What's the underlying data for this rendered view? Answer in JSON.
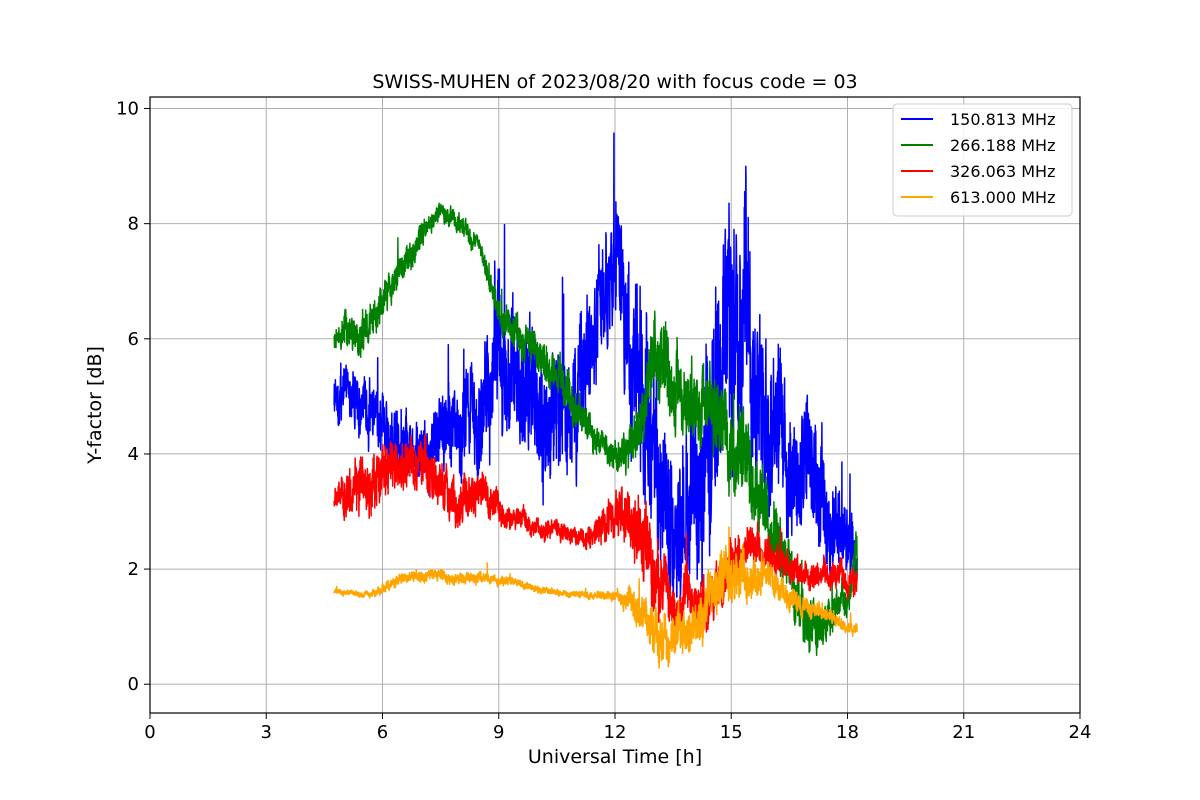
{
  "chart_data": {
    "type": "line",
    "title": "SWISS-MUHEN of 2023/08/20 with focus code = 03",
    "xlabel": "Universal Time [h]",
    "ylabel": "Y-factor [dB]",
    "xlim": [
      0,
      24
    ],
    "ylim": [
      -0.5,
      10.2
    ],
    "xticks": [
      0,
      3,
      6,
      9,
      12,
      15,
      18,
      21,
      24
    ],
    "yticks": [
      0,
      2,
      4,
      6,
      8,
      10
    ],
    "grid": true,
    "legend_position": "top-right",
    "series": [
      {
        "name": "150.813 MHz",
        "color": "#0000ff",
        "x": [
          4.75,
          5.0,
          5.5,
          6.0,
          6.5,
          7.0,
          7.5,
          8.0,
          8.5,
          9.0,
          9.5,
          10.0,
          10.5,
          11.0,
          11.5,
          12.0,
          12.5,
          13.0,
          13.5,
          14.0,
          14.5,
          15.0,
          15.5,
          16.0,
          16.5,
          17.0,
          17.5,
          18.0,
          18.25
        ],
        "y": [
          5.0,
          5.1,
          4.8,
          4.5,
          4.3,
          4.2,
          4.4,
          4.3,
          4.6,
          5.6,
          5.2,
          4.9,
          4.7,
          4.6,
          6.2,
          7.4,
          6.0,
          3.5,
          2.3,
          3.6,
          4.6,
          6.4,
          5.8,
          4.8,
          3.9,
          3.5,
          2.9,
          2.4,
          2.3
        ],
        "spread": [
          0.5,
          0.5,
          0.6,
          0.6,
          0.7,
          0.7,
          0.9,
          1.0,
          1.2,
          1.6,
          1.5,
          1.4,
          1.4,
          1.4,
          1.3,
          1.2,
          1.8,
          2.0,
          1.6,
          1.8,
          2.0,
          2.6,
          2.2,
          1.8,
          1.5,
          1.3,
          1.0,
          0.8,
          0.5
        ]
      },
      {
        "name": "266.188 MHz",
        "color": "#008000",
        "x": [
          4.75,
          5.0,
          5.5,
          6.0,
          6.5,
          7.0,
          7.5,
          8.0,
          8.5,
          9.0,
          9.5,
          10.0,
          10.5,
          11.0,
          11.5,
          12.0,
          12.5,
          13.0,
          13.5,
          14.0,
          14.5,
          15.0,
          15.5,
          16.0,
          16.5,
          17.0,
          17.5,
          18.0,
          18.25
        ],
        "y": [
          5.95,
          6.1,
          6.0,
          6.7,
          7.2,
          7.8,
          8.2,
          8.0,
          7.6,
          6.5,
          6.1,
          5.8,
          5.3,
          4.8,
          4.3,
          4.0,
          4.1,
          5.6,
          5.2,
          5.0,
          4.7,
          4.3,
          3.7,
          2.8,
          2.0,
          0.9,
          1.1,
          1.6,
          2.3
        ],
        "spread": [
          0.2,
          0.4,
          0.4,
          0.4,
          0.3,
          0.3,
          0.2,
          0.2,
          0.2,
          0.3,
          0.4,
          0.4,
          0.4,
          0.4,
          0.3,
          0.3,
          0.5,
          0.9,
          0.8,
          0.7,
          0.8,
          0.9,
          0.9,
          0.8,
          0.6,
          0.6,
          0.4,
          0.4,
          0.5
        ]
      },
      {
        "name": "326.063 MHz",
        "color": "#ff0000",
        "x": [
          4.75,
          5.0,
          5.5,
          6.0,
          6.5,
          7.0,
          7.5,
          8.0,
          8.5,
          9.0,
          9.5,
          10.0,
          10.5,
          11.0,
          11.5,
          12.0,
          12.5,
          13.0,
          13.5,
          14.0,
          14.5,
          15.0,
          15.5,
          16.0,
          16.5,
          17.0,
          17.5,
          18.0,
          18.25
        ],
        "y": [
          3.2,
          3.3,
          3.4,
          3.6,
          3.8,
          3.9,
          3.5,
          3.1,
          3.4,
          3.0,
          2.9,
          2.7,
          2.7,
          2.5,
          2.6,
          3.0,
          2.8,
          2.0,
          1.4,
          1.3,
          1.6,
          2.0,
          2.4,
          2.2,
          2.0,
          1.9,
          1.9,
          1.8,
          1.8
        ],
        "spread": [
          0.2,
          0.5,
          0.6,
          0.6,
          0.5,
          0.5,
          0.5,
          0.5,
          0.4,
          0.3,
          0.2,
          0.2,
          0.2,
          0.2,
          0.3,
          0.5,
          0.8,
          0.9,
          0.5,
          0.5,
          0.5,
          0.5,
          0.4,
          0.4,
          0.3,
          0.3,
          0.3,
          0.3,
          0.3
        ]
      },
      {
        "name": "613.000 MHz",
        "color": "#ffa500",
        "x": [
          4.75,
          5.0,
          5.5,
          6.0,
          6.5,
          7.0,
          7.5,
          8.0,
          8.5,
          9.0,
          9.5,
          10.0,
          10.5,
          11.0,
          11.5,
          12.0,
          12.5,
          13.0,
          13.5,
          14.0,
          14.5,
          15.0,
          15.5,
          16.0,
          16.5,
          17.0,
          17.5,
          18.0,
          18.25
        ],
        "y": [
          1.6,
          1.6,
          1.55,
          1.65,
          1.85,
          1.9,
          1.9,
          1.8,
          1.85,
          1.8,
          1.75,
          1.65,
          1.6,
          1.55,
          1.55,
          1.55,
          1.4,
          1.0,
          0.7,
          1.0,
          1.5,
          1.9,
          2.0,
          1.8,
          1.5,
          1.3,
          1.2,
          1.0,
          0.95
        ],
        "spread": [
          0.05,
          0.05,
          0.06,
          0.1,
          0.12,
          0.12,
          0.12,
          0.12,
          0.12,
          0.1,
          0.08,
          0.08,
          0.07,
          0.07,
          0.08,
          0.1,
          0.35,
          0.5,
          0.5,
          0.5,
          0.6,
          0.6,
          0.5,
          0.35,
          0.25,
          0.2,
          0.15,
          0.12,
          0.12
        ]
      }
    ]
  }
}
